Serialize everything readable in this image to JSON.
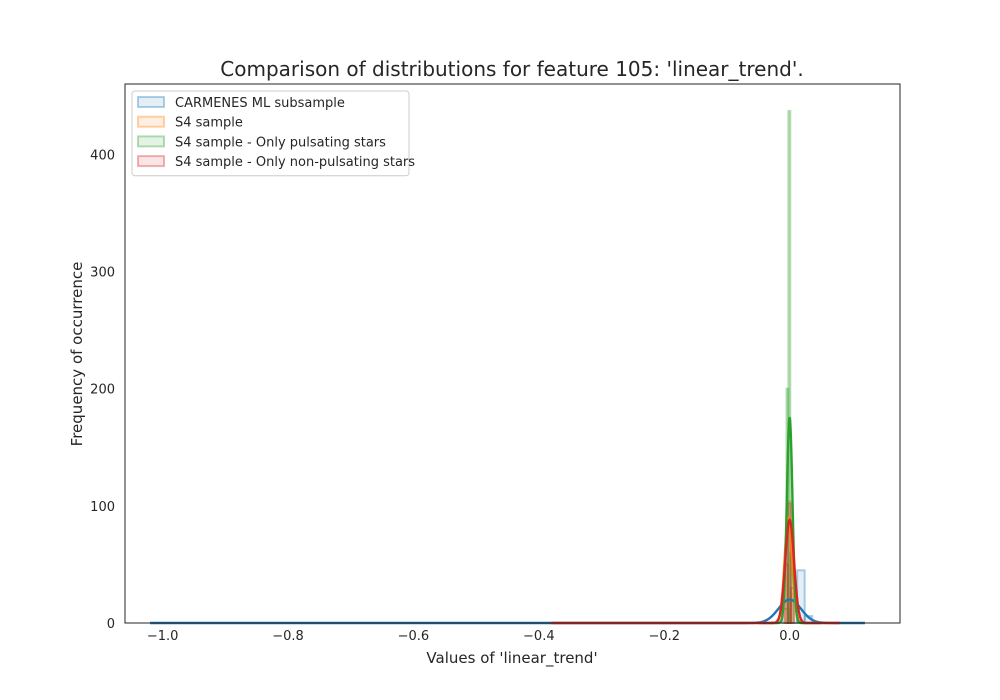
{
  "chart_data": {
    "type": "histogram",
    "title": "Comparison of distributions for feature 105: 'linear_trend'.",
    "xlabel": "Values of 'linear_trend'",
    "ylabel": "Frequency of occurrence",
    "xlim": [
      -1.06,
      0.176
    ],
    "ylim": [
      0,
      460
    ],
    "x_ticks": [
      -1.0,
      -0.8,
      -0.6,
      -0.4,
      -0.2,
      0.0
    ],
    "x_tick_labels": [
      "−1.0",
      "−0.8",
      "−0.6",
      "−0.4",
      "−0.2",
      "0.0"
    ],
    "y_ticks": [
      0,
      100,
      200,
      300,
      400
    ],
    "y_tick_labels": [
      "0",
      "100",
      "200",
      "300",
      "400"
    ],
    "grid": false,
    "legend_position": "top-left",
    "series": [
      {
        "name": "CARMENES ML subsample",
        "color": "#1f77b4",
        "histogram": [
          {
            "x0": -0.012,
            "x1": 0.0,
            "count": 12
          },
          {
            "x0": 0.0,
            "x1": 0.012,
            "count": 20
          },
          {
            "x0": 0.012,
            "x1": 0.024,
            "count": 45
          },
          {
            "x0": 0.024,
            "x1": 0.036,
            "count": 6
          }
        ],
        "kde": {
          "center": 0.0,
          "peak": 20,
          "width": 0.018,
          "range": [
            -1.02,
            0.12
          ]
        }
      },
      {
        "name": "S4 sample",
        "color": "#ff7f0e",
        "histogram": [
          {
            "x0": -0.008,
            "x1": -0.003,
            "count": 40
          },
          {
            "x0": -0.003,
            "x1": 0.002,
            "count": 104
          },
          {
            "x0": 0.002,
            "x1": 0.007,
            "count": 25
          }
        ],
        "kde": {
          "center": -0.002,
          "peak": 90,
          "width": 0.006,
          "range": [
            -0.05,
            0.05
          ]
        }
      },
      {
        "name": "S4 sample - Only pulsating stars",
        "color": "#2ca02c",
        "histogram": [
          {
            "x0": -0.005,
            "x1": -0.002,
            "count": 200
          },
          {
            "x0": -0.002,
            "x1": 0.001,
            "count": 437
          },
          {
            "x0": 0.001,
            "x1": 0.004,
            "count": 60
          }
        ],
        "kde": {
          "center": 0.0,
          "peak": 175,
          "width": 0.0045,
          "range": [
            -0.03,
            0.03
          ]
        }
      },
      {
        "name": "S4 sample - Only non-pulsating stars",
        "color": "#d62728",
        "histogram": [
          {
            "x0": -0.008,
            "x1": -0.003,
            "count": 50
          },
          {
            "x0": -0.003,
            "x1": 0.002,
            "count": 102
          },
          {
            "x0": 0.002,
            "x1": 0.007,
            "count": 30
          }
        ],
        "kde": {
          "center": 0.0,
          "peak": 88,
          "width": 0.007,
          "range": [
            -0.38,
            0.08
          ]
        }
      }
    ]
  }
}
